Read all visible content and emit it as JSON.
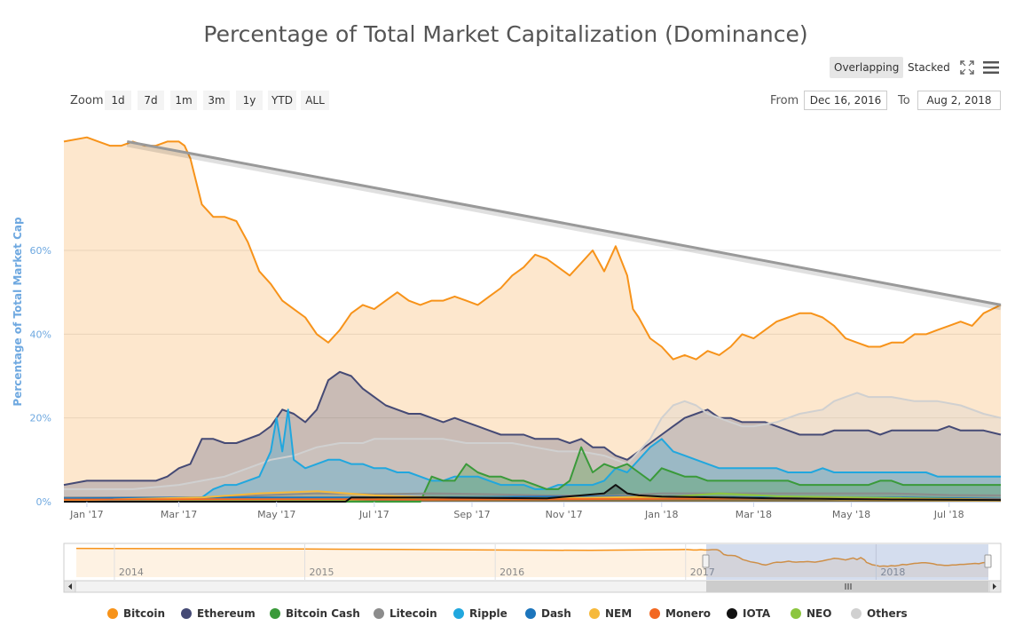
{
  "title": "Percentage of Total Market Capitalization (Dominance)",
  "view_toggle": {
    "overlapping": "Overlapping",
    "stacked": "Stacked"
  },
  "toolbar_icons": {
    "fullscreen": "fullscreen-icon",
    "menu": "hamburger-menu-icon"
  },
  "zoom": {
    "label": "Zoom",
    "buttons": [
      "1d",
      "7d",
      "1m",
      "3m",
      "1y",
      "YTD",
      "ALL"
    ]
  },
  "range": {
    "from_label": "From",
    "from_value": "Dec 16, 2016",
    "to_label": "To",
    "to_value": "Aug 2, 2018"
  },
  "navigator": {
    "years": [
      "2014",
      "2015",
      "2016",
      "2017",
      "2018"
    ]
  },
  "colors": {
    "Bitcoin": "#f7931a",
    "Ethereum": "#454a75",
    "Bitcoin Cash": "#3a9a3a",
    "Litecoin": "#8c8c8c",
    "Ripple": "#21a7de",
    "Dash": "#1c75bc",
    "NEM": "#f6b93b",
    "Monero": "#f26822",
    "IOTA": "#111111",
    "NEO": "#8cc63f",
    "Others": "#d0d0d0",
    "trendline": "#999999",
    "axis_label": "#6ea8e0"
  },
  "chart_data": {
    "type": "area",
    "title": "Percentage of Total Market Capitalization (Dominance)",
    "ylabel": "Percentage of Total Market Cap",
    "xlabel": "",
    "x_domain": [
      2016.96,
      2018.59
    ],
    "ylim": [
      0,
      88
    ],
    "y_ticks": [
      {
        "value": 0,
        "label": "0%"
      },
      {
        "value": 20,
        "label": "20%"
      },
      {
        "value": 40,
        "label": "40%"
      },
      {
        "value": 60,
        "label": "60%"
      }
    ],
    "x_ticks": [
      {
        "value": 2017.0,
        "label": "Jan '17"
      },
      {
        "value": 2017.16,
        "label": "Mar '17"
      },
      {
        "value": 2017.33,
        "label": "May '17"
      },
      {
        "value": 2017.5,
        "label": "Jul '17"
      },
      {
        "value": 2017.67,
        "label": "Sep '17"
      },
      {
        "value": 2017.83,
        "label": "Nov '17"
      },
      {
        "value": 2018.0,
        "label": "Jan '18"
      },
      {
        "value": 2018.16,
        "label": "Mar '18"
      },
      {
        "value": 2018.33,
        "label": "May '18"
      },
      {
        "value": 2018.5,
        "label": "Jul '18"
      }
    ],
    "trendline": {
      "x": [
        2017.07,
        2018.59
      ],
      "y": [
        86,
        47
      ]
    },
    "legend_position": "bottom",
    "series": [
      {
        "name": "Bitcoin",
        "x": [
          2016.96,
          2017.0,
          2017.02,
          2017.04,
          2017.06,
          2017.08,
          2017.1,
          2017.12,
          2017.14,
          2017.16,
          2017.17,
          2017.18,
          2017.2,
          2017.22,
          2017.24,
          2017.26,
          2017.28,
          2017.3,
          2017.32,
          2017.34,
          2017.36,
          2017.38,
          2017.4,
          2017.42,
          2017.44,
          2017.46,
          2017.48,
          2017.5,
          2017.52,
          2017.54,
          2017.56,
          2017.58,
          2017.6,
          2017.62,
          2017.64,
          2017.66,
          2017.68,
          2017.7,
          2017.72,
          2017.74,
          2017.76,
          2017.78,
          2017.8,
          2017.82,
          2017.84,
          2017.86,
          2017.88,
          2017.9,
          2017.92,
          2017.94,
          2017.95,
          2017.96,
          2017.98,
          2018.0,
          2018.02,
          2018.04,
          2018.06,
          2018.08,
          2018.1,
          2018.12,
          2018.14,
          2018.16,
          2018.18,
          2018.2,
          2018.22,
          2018.24,
          2018.26,
          2018.28,
          2018.3,
          2018.32,
          2018.34,
          2018.36,
          2018.38,
          2018.4,
          2018.42,
          2018.44,
          2018.46,
          2018.48,
          2018.5,
          2018.52,
          2018.54,
          2018.56,
          2018.59
        ],
        "y": [
          86,
          87,
          86,
          85,
          85,
          86,
          85,
          85,
          86,
          86,
          85,
          82,
          71,
          68,
          68,
          67,
          62,
          55,
          52,
          48,
          46,
          44,
          40,
          38,
          41,
          45,
          47,
          46,
          48,
          50,
          48,
          47,
          48,
          48,
          49,
          48,
          47,
          49,
          51,
          54,
          56,
          59,
          58,
          56,
          54,
          57,
          60,
          55,
          61,
          54,
          46,
          44,
          39,
          37,
          34,
          35,
          34,
          36,
          35,
          37,
          40,
          39,
          41,
          43,
          44,
          45,
          45,
          44,
          42,
          39,
          38,
          37,
          37,
          38,
          38,
          40,
          40,
          41,
          42,
          43,
          42,
          45,
          47
        ]
      },
      {
        "name": "Ethereum",
        "x": [
          2016.96,
          2017.0,
          2017.04,
          2017.08,
          2017.1,
          2017.12,
          2017.14,
          2017.16,
          2017.18,
          2017.2,
          2017.22,
          2017.24,
          2017.26,
          2017.28,
          2017.3,
          2017.32,
          2017.34,
          2017.36,
          2017.38,
          2017.4,
          2017.42,
          2017.44,
          2017.46,
          2017.48,
          2017.5,
          2017.52,
          2017.54,
          2017.56,
          2017.58,
          2017.6,
          2017.62,
          2017.64,
          2017.66,
          2017.68,
          2017.7,
          2017.72,
          2017.74,
          2017.76,
          2017.78,
          2017.8,
          2017.82,
          2017.84,
          2017.86,
          2017.88,
          2017.9,
          2017.92,
          2017.94,
          2017.96,
          2017.98,
          2018.0,
          2018.02,
          2018.04,
          2018.06,
          2018.08,
          2018.1,
          2018.12,
          2018.14,
          2018.16,
          2018.18,
          2018.2,
          2018.22,
          2018.24,
          2018.26,
          2018.28,
          2018.3,
          2018.32,
          2018.34,
          2018.36,
          2018.38,
          2018.4,
          2018.42,
          2018.44,
          2018.46,
          2018.48,
          2018.5,
          2018.52,
          2018.54,
          2018.56,
          2018.59
        ],
        "y": [
          4,
          5,
          5,
          5,
          5,
          5,
          6,
          8,
          9,
          15,
          15,
          14,
          14,
          15,
          16,
          18,
          22,
          21,
          19,
          22,
          29,
          31,
          30,
          27,
          25,
          23,
          22,
          21,
          21,
          20,
          19,
          20,
          19,
          18,
          17,
          16,
          16,
          16,
          15,
          15,
          15,
          14,
          15,
          13,
          13,
          11,
          10,
          12,
          14,
          16,
          18,
          20,
          21,
          22,
          20,
          20,
          19,
          19,
          19,
          18,
          17,
          16,
          16,
          16,
          17,
          17,
          17,
          17,
          16,
          17,
          17,
          17,
          17,
          17,
          18,
          17,
          17,
          17,
          16
        ]
      },
      {
        "name": "Bitcoin Cash",
        "x": [
          2016.96,
          2017.58,
          2017.59,
          2017.6,
          2017.62,
          2017.64,
          2017.66,
          2017.68,
          2017.7,
          2017.72,
          2017.74,
          2017.76,
          2017.78,
          2017.8,
          2017.82,
          2017.84,
          2017.86,
          2017.88,
          2017.9,
          2017.92,
          2017.94,
          2017.96,
          2017.98,
          2018.0,
          2018.02,
          2018.04,
          2018.06,
          2018.08,
          2018.1,
          2018.12,
          2018.14,
          2018.16,
          2018.18,
          2018.2,
          2018.22,
          2018.24,
          2018.26,
          2018.28,
          2018.3,
          2018.32,
          2018.34,
          2018.36,
          2018.38,
          2018.4,
          2018.42,
          2018.44,
          2018.46,
          2018.48,
          2018.5,
          2018.52,
          2018.54,
          2018.56,
          2018.59
        ],
        "y": [
          0,
          0,
          3,
          6,
          5,
          5,
          9,
          7,
          6,
          6,
          5,
          5,
          4,
          3,
          3,
          5,
          13,
          7,
          9,
          8,
          9,
          7,
          5,
          8,
          7,
          6,
          6,
          5,
          5,
          5,
          5,
          5,
          5,
          5,
          5,
          4,
          4,
          4,
          4,
          4,
          4,
          4,
          5,
          5,
          4,
          4,
          4,
          4,
          4,
          4,
          4,
          4,
          4
        ]
      },
      {
        "name": "Litecoin",
        "x": [
          2016.96,
          2017.1,
          2017.2,
          2017.3,
          2017.4,
          2017.5,
          2017.6,
          2017.7,
          2017.8,
          2017.9,
          2018.0,
          2018.1,
          2018.2,
          2018.3,
          2018.4,
          2018.5,
          2018.59
        ],
        "y": [
          1,
          1,
          1,
          1.5,
          2,
          1.8,
          2,
          1.8,
          1.5,
          1.4,
          2,
          2,
          2,
          2,
          2,
          1.6,
          1.5
        ]
      },
      {
        "name": "Ripple",
        "x": [
          2016.96,
          2017.1,
          2017.2,
          2017.22,
          2017.24,
          2017.26,
          2017.28,
          2017.3,
          2017.32,
          2017.33,
          2017.34,
          2017.35,
          2017.36,
          2017.38,
          2017.4,
          2017.42,
          2017.44,
          2017.46,
          2017.48,
          2017.5,
          2017.52,
          2017.54,
          2017.56,
          2017.58,
          2017.6,
          2017.62,
          2017.64,
          2017.66,
          2017.68,
          2017.7,
          2017.72,
          2017.74,
          2017.76,
          2017.78,
          2017.8,
          2017.82,
          2017.84,
          2017.86,
          2017.88,
          2017.9,
          2017.92,
          2017.94,
          2017.96,
          2017.98,
          2018.0,
          2018.02,
          2018.04,
          2018.06,
          2018.08,
          2018.1,
          2018.12,
          2018.14,
          2018.16,
          2018.18,
          2018.2,
          2018.22,
          2018.24,
          2018.26,
          2018.28,
          2018.3,
          2018.32,
          2018.34,
          2018.36,
          2018.38,
          2018.4,
          2018.42,
          2018.44,
          2018.46,
          2018.48,
          2018.5,
          2018.52,
          2018.54,
          2018.56,
          2018.59
        ],
        "y": [
          0.5,
          0.5,
          1,
          3,
          4,
          4,
          5,
          6,
          12,
          20,
          12,
          22,
          10,
          8,
          9,
          10,
          10,
          9,
          9,
          8,
          8,
          7,
          7,
          6,
          5,
          5,
          6,
          6,
          6,
          5,
          4,
          4,
          4,
          3,
          3,
          4,
          4,
          4,
          4,
          5,
          8,
          7,
          10,
          13,
          15,
          12,
          11,
          10,
          9,
          8,
          8,
          8,
          8,
          8,
          8,
          7,
          7,
          7,
          8,
          7,
          7,
          7,
          7,
          7,
          7,
          7,
          7,
          7,
          6,
          6,
          6,
          6,
          6,
          6
        ]
      },
      {
        "name": "Dash",
        "x": [
          2016.96,
          2017.2,
          2017.4,
          2017.6,
          2017.8,
          2018.0,
          2018.2,
          2018.4,
          2018.59
        ],
        "y": [
          0.8,
          1,
          1,
          1,
          1.2,
          1.2,
          1,
          1,
          0.7
        ]
      },
      {
        "name": "NEM",
        "x": [
          2016.96,
          2017.2,
          2017.3,
          2017.4,
          2017.5,
          2017.6,
          2017.8,
          2018.0,
          2018.2,
          2018.4,
          2018.59
        ],
        "y": [
          0.3,
          1,
          2,
          2.5,
          1.5,
          1,
          0.8,
          1.2,
          0.8,
          0.4,
          0.3
        ]
      },
      {
        "name": "Monero",
        "x": [
          2016.96,
          2017.2,
          2017.4,
          2017.6,
          2017.8,
          2018.0,
          2018.2,
          2018.4,
          2018.59
        ],
        "y": [
          0.5,
          0.6,
          0.6,
          0.5,
          0.6,
          0.7,
          0.8,
          0.6,
          0.5
        ]
      },
      {
        "name": "IOTA",
        "x": [
          2016.96,
          2017.45,
          2017.46,
          2017.6,
          2017.8,
          2017.9,
          2017.92,
          2017.94,
          2017.96,
          2018.0,
          2018.2,
          2018.4,
          2018.59
        ],
        "y": [
          0,
          0,
          1,
          1,
          0.8,
          2,
          4,
          2,
          1.5,
          1.2,
          0.8,
          0.5,
          0.4
        ]
      },
      {
        "name": "NEO",
        "x": [
          2016.96,
          2017.4,
          2017.5,
          2017.6,
          2017.8,
          2018.0,
          2018.1,
          2018.2,
          2018.4,
          2018.59
        ],
        "y": [
          0,
          0.2,
          0.6,
          1,
          0.8,
          1,
          2,
          1.3,
          0.9,
          0.5
        ]
      },
      {
        "name": "Others",
        "x": [
          2016.96,
          2017.0,
          2017.04,
          2017.08,
          2017.12,
          2017.16,
          2017.2,
          2017.24,
          2017.28,
          2017.3,
          2017.32,
          2017.36,
          2017.4,
          2017.44,
          2017.48,
          2017.5,
          2017.54,
          2017.58,
          2017.62,
          2017.66,
          2017.7,
          2017.74,
          2017.78,
          2017.82,
          2017.86,
          2017.9,
          2017.94,
          2017.96,
          2017.98,
          2018.0,
          2018.02,
          2018.04,
          2018.06,
          2018.08,
          2018.1,
          2018.12,
          2018.14,
          2018.16,
          2018.2,
          2018.24,
          2018.28,
          2018.3,
          2018.32,
          2018.34,
          2018.36,
          2018.4,
          2018.44,
          2018.48,
          2018.52,
          2018.56,
          2018.59
        ],
        "y": [
          3,
          3,
          3,
          3,
          3.5,
          4,
          5,
          6,
          8,
          9,
          10,
          11,
          13,
          14,
          14,
          15,
          15,
          15,
          15,
          14,
          14,
          14,
          13,
          12,
          12,
          11,
          9,
          12,
          15,
          20,
          23,
          24,
          23,
          21,
          20,
          19,
          18,
          18,
          19,
          21,
          22,
          24,
          25,
          26,
          25,
          25,
          24,
          24,
          23,
          21,
          20
        ]
      }
    ]
  }
}
